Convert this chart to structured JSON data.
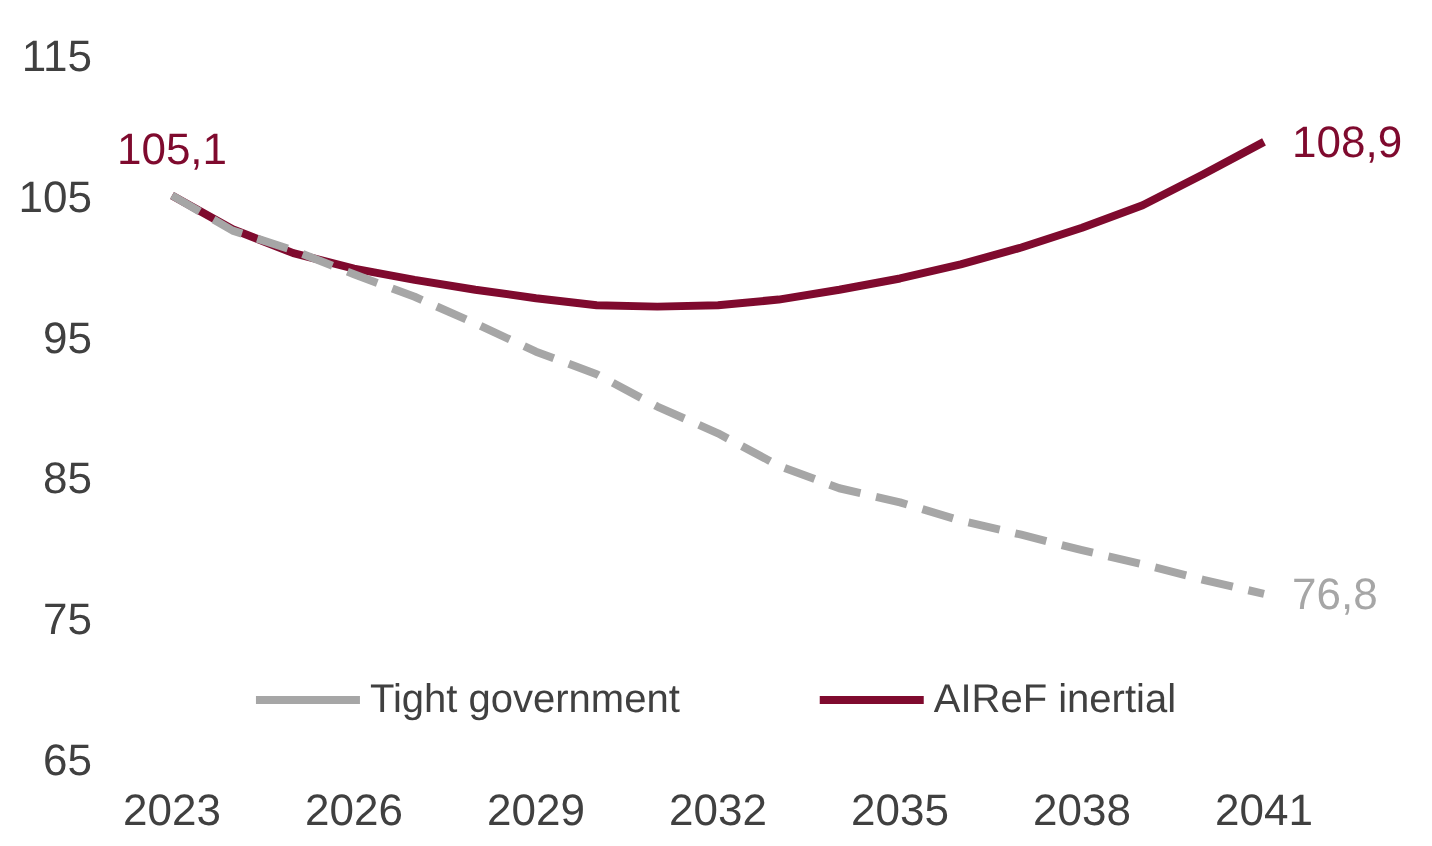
{
  "chart_data": {
    "type": "line",
    "x": [
      2023,
      2024,
      2025,
      2026,
      2027,
      2028,
      2029,
      2030,
      2031,
      2032,
      2033,
      2034,
      2035,
      2036,
      2037,
      2038,
      2039,
      2040,
      2041
    ],
    "series": [
      {
        "name": "Tight government",
        "color": "#a6a6a6",
        "line_style": "dashed",
        "values": [
          105.1,
          102.6,
          101.2,
          99.5,
          97.9,
          96.0,
          94.0,
          92.4,
          90.1,
          88.2,
          85.9,
          84.3,
          83.3,
          82.0,
          81.0,
          79.9,
          78.9,
          77.8,
          76.8
        ],
        "value_labels": [
          null,
          null,
          null,
          null,
          null,
          null,
          null,
          null,
          null,
          null,
          null,
          null,
          null,
          null,
          null,
          null,
          null,
          null,
          "76,8"
        ]
      },
      {
        "name": "AIReF inertial",
        "color": "#7f0a2e",
        "line_style": "solid",
        "values": [
          105.1,
          102.7,
          101.0,
          99.9,
          99.1,
          98.4,
          97.8,
          97.3,
          97.2,
          97.3,
          97.7,
          98.4,
          99.2,
          100.2,
          101.4,
          102.8,
          104.4,
          106.6,
          108.9
        ],
        "value_labels": [
          "105,1",
          null,
          null,
          null,
          null,
          null,
          null,
          null,
          null,
          null,
          null,
          null,
          null,
          null,
          null,
          null,
          null,
          null,
          "108,9"
        ]
      }
    ],
    "xlim": [
      2023,
      2041
    ],
    "xticks": [
      2023,
      2026,
      2029,
      2032,
      2035,
      2038,
      2041
    ],
    "ylim": [
      65,
      115
    ],
    "yticks": [
      65,
      75,
      85,
      95,
      105,
      115
    ],
    "grid": false,
    "legend": "bottom",
    "marker": "none"
  }
}
